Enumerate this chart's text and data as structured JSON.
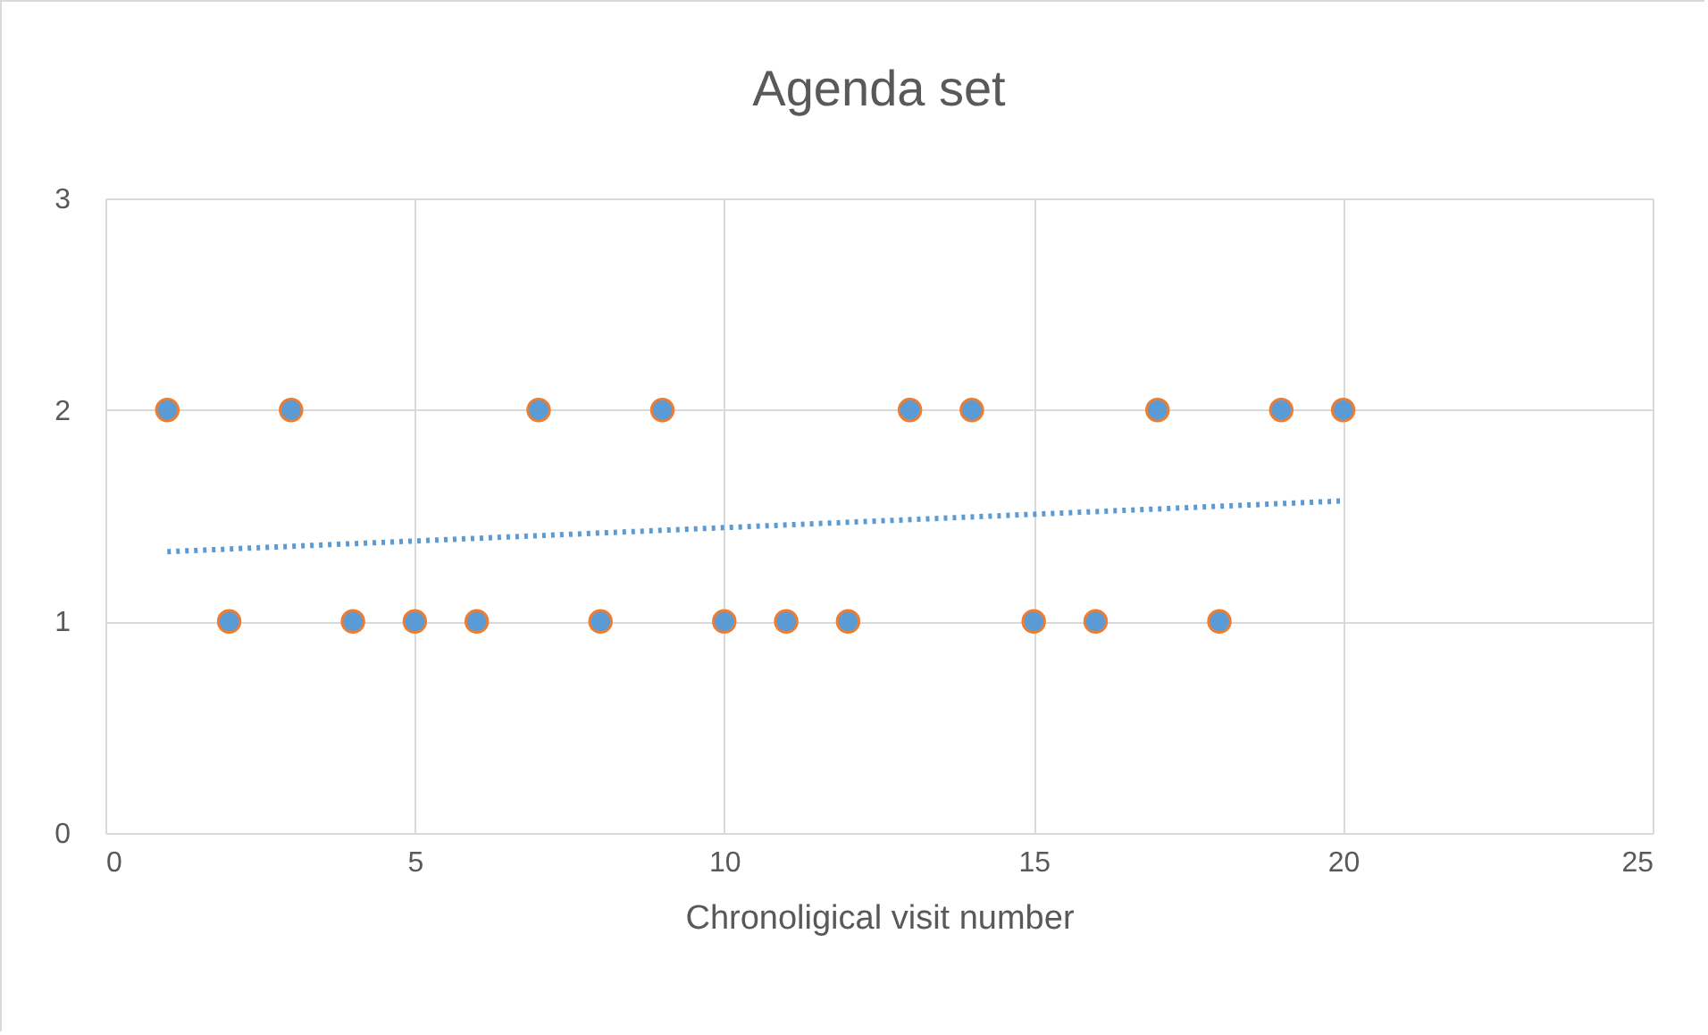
{
  "chart_data": {
    "type": "scatter",
    "title": "Agenda set",
    "xlabel": "Chronoligical visit number",
    "xlim": [
      0,
      25
    ],
    "xticks": [
      0,
      5,
      10,
      15,
      20,
      25
    ],
    "ylim": [
      0,
      3
    ],
    "yticks": [
      0,
      1,
      2,
      3
    ],
    "grid": true,
    "series": [
      {
        "color": "#5b9bd5",
        "marker": "circle",
        "x": [
          1,
          2,
          3,
          4,
          5,
          6,
          7,
          8,
          9,
          10,
          11,
          12,
          13,
          14,
          15,
          16,
          17,
          18,
          19,
          20
        ],
        "values": [
          2,
          1,
          2,
          1,
          1,
          1,
          2,
          1,
          2,
          1,
          1,
          1,
          2,
          2,
          1,
          1,
          2,
          1,
          2,
          2
        ]
      },
      {
        "type": "line",
        "color": "#5b9bd5",
        "marker": "none",
        "line_style": "dotted",
        "x": [
          1,
          20
        ],
        "values": [
          1.33,
          1.57
        ]
      }
    ]
  }
}
